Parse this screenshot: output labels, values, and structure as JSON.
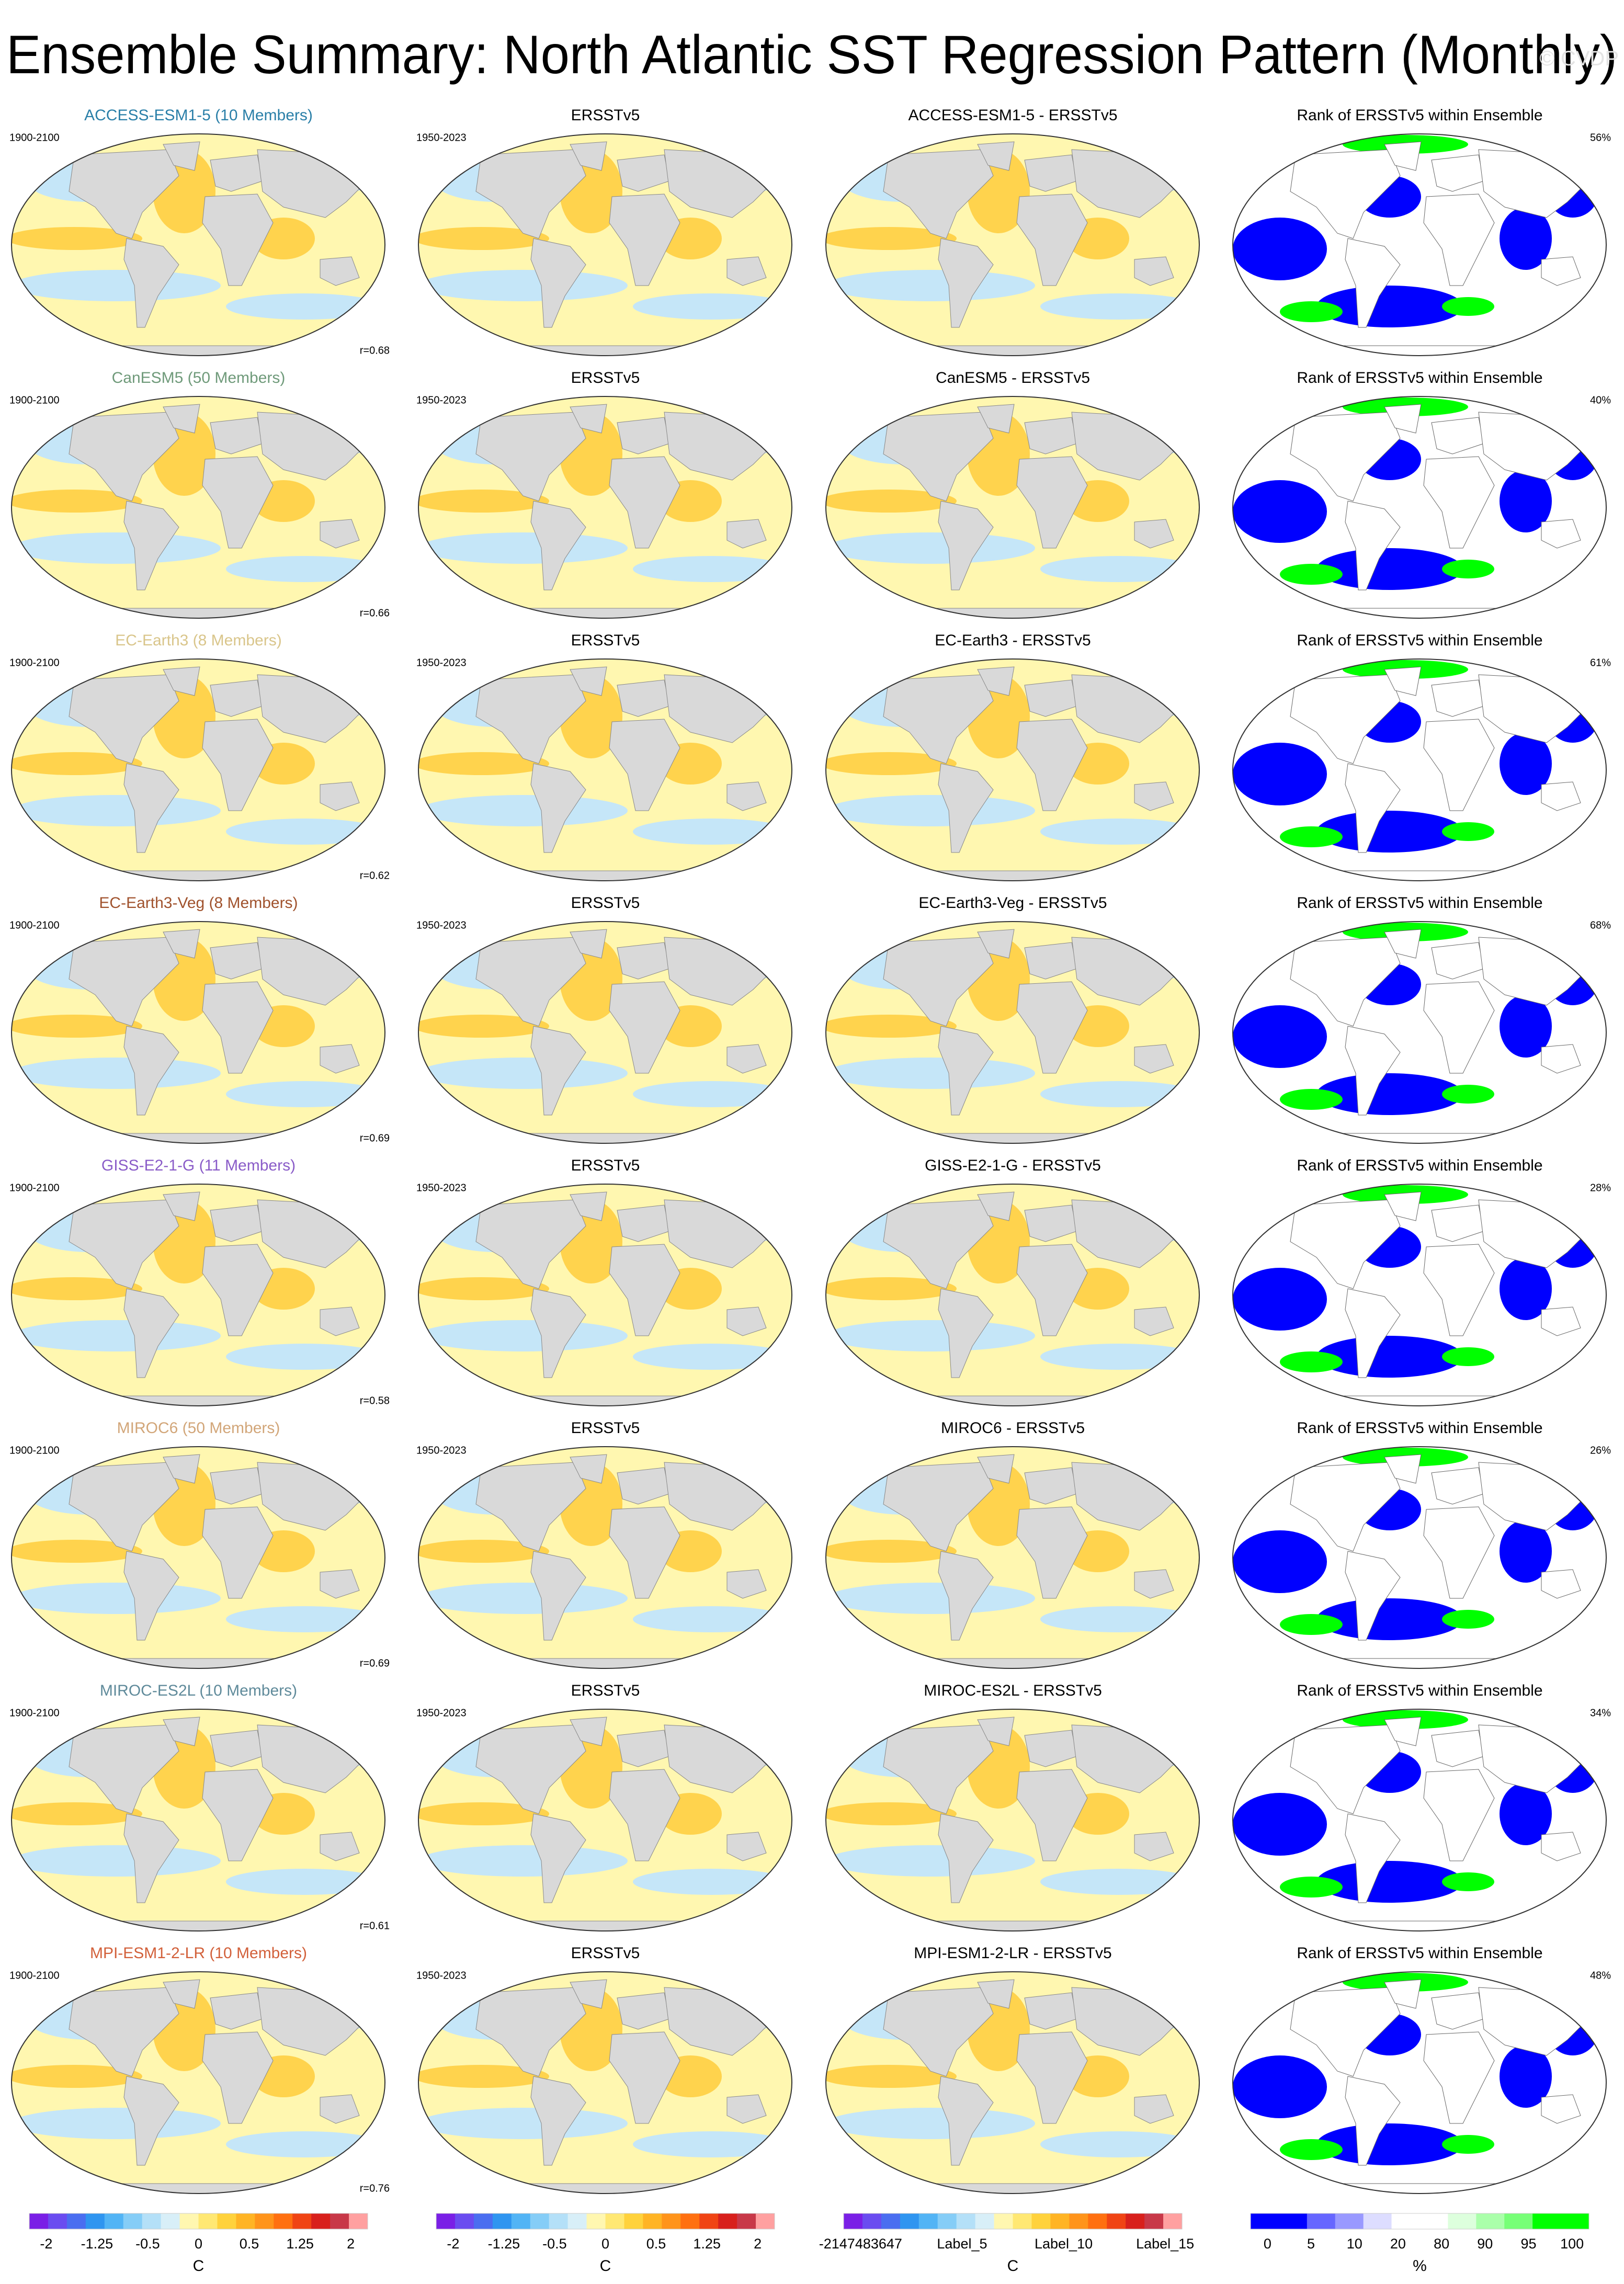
{
  "header": {
    "title": "Ensemble Summary: North Atlantic SST Regression Pattern (Monthly)",
    "watermark": "© CVDP"
  },
  "rows": [
    {
      "model_title": "ACCESS-ESM1-5 (10 Members)",
      "model_color": "#2a7fa8",
      "model_period": "1900-2100",
      "correlation": "r=0.68",
      "obs_title": "ERSSTv5",
      "obs_period": "1950-2023",
      "difference_title": "ACCESS-ESM1-5 - ERSSTv5",
      "rank_title": "Rank of ERSSTv5 within Ensemble",
      "rank_percent": "56%"
    },
    {
      "model_title": "CanESM5 (50 Members)",
      "model_color": "#6f9a7a",
      "model_period": "1900-2100",
      "correlation": "r=0.66",
      "obs_title": "ERSSTv5",
      "obs_period": "1950-2023",
      "difference_title": "CanESM5 - ERSSTv5",
      "rank_title": "Rank of ERSSTv5 within Ensemble",
      "rank_percent": "40%"
    },
    {
      "model_title": "EC-Earth3 (8 Members)",
      "model_color": "#d9c58a",
      "model_period": "1900-2100",
      "correlation": "r=0.62",
      "obs_title": "ERSSTv5",
      "obs_period": "1950-2023",
      "difference_title": "EC-Earth3 - ERSSTv5",
      "rank_title": "Rank of ERSSTv5 within Ensemble",
      "rank_percent": "61%"
    },
    {
      "model_title": "EC-Earth3-Veg (8 Members)",
      "model_color": "#a0522d",
      "model_period": "1900-2100",
      "correlation": "r=0.69",
      "obs_title": "ERSSTv5",
      "obs_period": "1950-2023",
      "difference_title": "EC-Earth3-Veg - ERSSTv5",
      "rank_title": "Rank of ERSSTv5 within Ensemble",
      "rank_percent": "68%"
    },
    {
      "model_title": "GISS-E2-1-G (11 Members)",
      "model_color": "#8a5cc8",
      "model_period": "1900-2100",
      "correlation": "r=0.58",
      "obs_title": "ERSSTv5",
      "obs_period": "1950-2023",
      "difference_title": "GISS-E2-1-G - ERSSTv5",
      "rank_title": "Rank of ERSSTv5 within Ensemble",
      "rank_percent": "28%"
    },
    {
      "model_title": "MIROC6 (50 Members)",
      "model_color": "#d2a679",
      "model_period": "1900-2100",
      "correlation": "r=0.69",
      "obs_title": "ERSSTv5",
      "obs_period": "1950-2023",
      "difference_title": "MIROC6 - ERSSTv5",
      "rank_title": "Rank of ERSSTv5 within Ensemble",
      "rank_percent": "26%"
    },
    {
      "model_title": "MIROC-ES2L (10 Members)",
      "model_color": "#5f8a9a",
      "model_period": "1900-2100",
      "correlation": "r=0.61",
      "obs_title": "ERSSTv5",
      "obs_period": "1950-2023",
      "difference_title": "MIROC-ES2L - ERSSTv5",
      "rank_title": "Rank of ERSSTv5 within Ensemble",
      "rank_percent": "34%"
    },
    {
      "model_title": "MPI-ESM1-2-LR (10 Members)",
      "model_color": "#d2603a",
      "model_period": "1900-2100",
      "correlation": "r=0.76",
      "obs_title": "ERSSTv5",
      "obs_period": "1950-2023",
      "difference_title": "MPI-ESM1-2-LR - ERSSTv5",
      "rank_title": "Rank of ERSSTv5 within Ensemble",
      "rank_percent": "48%"
    }
  ],
  "colorbars": [
    {
      "labels": [
        "-2",
        "-1.25",
        "-0.5",
        "0",
        "0.5",
        "1.25",
        "2"
      ],
      "unit": "C",
      "colors": [
        "#7a1fe6",
        "#6a4cf0",
        "#4a6ef0",
        "#2f95f0",
        "#52b4f5",
        "#85cdf7",
        "#b4e0f8",
        "#d8eff8",
        "#fff7b0",
        "#ffe873",
        "#ffd23c",
        "#ffb424",
        "#ff941a",
        "#ff7010",
        "#f04414",
        "#d8201c",
        "#c83848",
        "#ffa0a0"
      ]
    },
    {
      "labels": [
        "-2",
        "-1.25",
        "-0.5",
        "0",
        "0.5",
        "1.25",
        "2"
      ],
      "unit": "C",
      "colors": [
        "#7a1fe6",
        "#6a4cf0",
        "#4a6ef0",
        "#2f95f0",
        "#52b4f5",
        "#85cdf7",
        "#b4e0f8",
        "#d8eff8",
        "#fff7b0",
        "#ffe873",
        "#ffd23c",
        "#ffb424",
        "#ff941a",
        "#ff7010",
        "#f04414",
        "#d8201c",
        "#c83848",
        "#ffa0a0"
      ]
    },
    {
      "labels": [
        "-2147483647",
        "Label_5",
        "Label_10",
        "Label_15"
      ],
      "unit": "C",
      "colors": [
        "#7a1fe6",
        "#6a4cf0",
        "#4a6ef0",
        "#2f95f0",
        "#52b4f5",
        "#85cdf7",
        "#b4e0f8",
        "#d8eff8",
        "#fff7b0",
        "#ffe873",
        "#ffd23c",
        "#ffb424",
        "#ff941a",
        "#ff7010",
        "#f04414",
        "#d8201c",
        "#c83848",
        "#ffa0a0"
      ]
    },
    {
      "labels": [
        "0",
        "5",
        "10",
        "20",
        "80",
        "90",
        "95",
        "100"
      ],
      "unit": "%",
      "colors": [
        "#0000ff",
        "#0000ff",
        "#6666ff",
        "#9999ff",
        "#ddddff",
        "#ffffff",
        "#ffffff",
        "#ddffdd",
        "#aaffaa",
        "#77ff77",
        "#00ff00",
        "#00ff00"
      ]
    }
  ]
}
